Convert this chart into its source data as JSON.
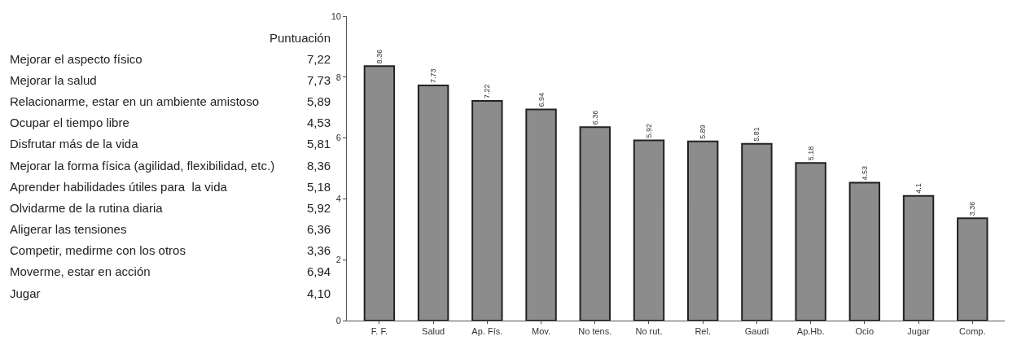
{
  "chart_data": [
    {
      "type": "other",
      "title": "Puntuación",
      "categories": [
        "Mejorar el aspecto físico",
        "Mejorar la salud",
        "Relacionarme, estar en un ambiente amistoso",
        "Ocupar el tiempo libre",
        "Disfrutar más de la vida",
        "Mejorar la forma física (agilidad, flexibilidad, etc.)",
        "Aprender habilidades útiles para  la vida",
        "Olvidarme de la rutina diaria",
        "Aligerar las tensiones",
        "Competir, medirme con los otros",
        "Moverme, estar en acción",
        "Jugar"
      ],
      "value_labels": [
        "7,22",
        "7,73",
        "5,89",
        "4,53",
        "5,81",
        "8,36",
        "5,18",
        "5,92",
        "6,36",
        "3,36",
        "6,94",
        "4,10"
      ]
    },
    {
      "type": "bar",
      "categories": [
        "F. F.",
        "Salud",
        "Ap. Fís.",
        "Mov.",
        "No tens.",
        "No rut.",
        "Rel.",
        "Gaudi",
        "Ap.Hb.",
        "Ocio",
        "Jugar",
        "Comp."
      ],
      "values": [
        8.36,
        7.73,
        7.22,
        6.94,
        6.36,
        5.92,
        5.89,
        5.81,
        5.18,
        4.53,
        4.1,
        3.36
      ],
      "color": "#8c8c8c",
      "ylim": [
        0,
        10
      ],
      "yticks": [
        0,
        2,
        4,
        6,
        8,
        10
      ],
      "data_labels": true
    }
  ]
}
